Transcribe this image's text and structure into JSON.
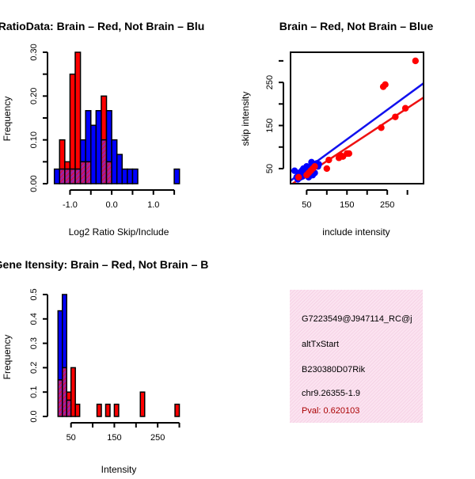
{
  "colors": {
    "red": "#ff0000",
    "blue": "#0000ff",
    "purple": "#a020a0",
    "red_line": "#ee1111",
    "blue_line": "#1111ee",
    "info_bg": "#f9dcec",
    "pval": "#aa0000"
  },
  "chart_data": [
    {
      "type": "bar",
      "title": "RatioData: Brain – Red, Not Brain – Blu",
      "xlabel": "Log2 Ratio Skip/Include",
      "ylabel": "Frequency",
      "xlim": [
        -1.35,
        1.65
      ],
      "ylim": [
        0,
        0.3
      ],
      "xticks": [
        -1.0,
        -0.5,
        0.0,
        0.5,
        1.0,
        1.5
      ],
      "xticklabels": [
        "-1.0",
        "0.0",
        "1.0"
      ],
      "xticklabel_values": [
        -1.0,
        0.0,
        1.0
      ],
      "yticks": [
        0.0,
        0.1,
        0.2,
        0.3
      ],
      "yticklabels": [
        "0.00",
        "0.10",
        "0.20",
        "0.30"
      ],
      "ytick_minor": [
        0.05,
        0.15,
        0.25
      ],
      "bin_width": 0.125,
      "bin_starts": [
        -1.375,
        -1.25,
        -1.125,
        -1.0,
        -0.875,
        -0.75,
        -0.625,
        -0.5,
        -0.375,
        -0.25,
        -0.125,
        0.0,
        0.125,
        0.25,
        0.375,
        0.5,
        0.625,
        0.75,
        0.875,
        1.0,
        1.125,
        1.25,
        1.375,
        1.5
      ],
      "series": [
        {
          "name": "Not Brain",
          "color": "blue",
          "values": [
            0.0333,
            0.0333,
            0.0333,
            0.0333,
            0.0333,
            0.1,
            0.1667,
            0.1333,
            0.1667,
            0.1,
            0.1667,
            0.1,
            0.0667,
            0.0333,
            0.0333,
            0.0333,
            0,
            0,
            0,
            0,
            0,
            0,
            0,
            0.0333
          ]
        },
        {
          "name": "Brain",
          "color": "red",
          "values": [
            0,
            0.1,
            0.05,
            0.25,
            0.3,
            0.05,
            0.05,
            0,
            0,
            0.2,
            0.05,
            0,
            0,
            0,
            0,
            0,
            0,
            0,
            0,
            0,
            0,
            0,
            0,
            0
          ]
        }
      ]
    },
    {
      "type": "scatter",
      "title": "Brain – Red, Not Brain – Blue",
      "xlabel": "include intensity",
      "ylabel": "skip intensity",
      "xlim": [
        10,
        340
      ],
      "ylim": [
        15,
        320
      ],
      "xticks": [
        50,
        150,
        250
      ],
      "xticklabels": [
        "50",
        "150",
        "250"
      ],
      "xtick_minor": [
        100,
        200,
        300
      ],
      "yticks": [
        50,
        150,
        250
      ],
      "yticklabels": [
        "50",
        "150",
        "250"
      ],
      "ytick_minor": [
        100,
        200,
        300
      ],
      "series": [
        {
          "name": "Not Brain",
          "color": "blue",
          "x": [
            20,
            25,
            28,
            30,
            33,
            35,
            38,
            40,
            42,
            45,
            48,
            50,
            52,
            55,
            58,
            60,
            62,
            65,
            68,
            70,
            72,
            75,
            78,
            80,
            55,
            65
          ],
          "y": [
            45,
            30,
            25,
            40,
            35,
            30,
            45,
            32,
            50,
            38,
            42,
            55,
            35,
            48,
            40,
            52,
            65,
            45,
            60,
            40,
            58,
            62,
            55,
            60,
            30,
            35
          ],
          "fit": {
            "x": [
              10,
              340
            ],
            "y": [
              22,
              248
            ]
          }
        },
        {
          "name": "Brain",
          "color": "red",
          "x": [
            30,
            50,
            55,
            60,
            65,
            70,
            100,
            105,
            130,
            135,
            140,
            150,
            155,
            235,
            240,
            245,
            270,
            295,
            320
          ],
          "y": [
            30,
            35,
            40,
            45,
            50,
            55,
            50,
            70,
            75,
            80,
            78,
            85,
            85,
            145,
            240,
            245,
            170,
            190,
            300
          ],
          "fit": {
            "x": [
              10,
              340
            ],
            "y": [
              12,
              215
            ]
          }
        }
      ]
    },
    {
      "type": "bar",
      "title": "Gene Itensity: Brain – Red, Not Brain – B",
      "xlabel": "Intensity",
      "ylabel": "Frequency",
      "xlim": [
        14,
        310
      ],
      "ylim": [
        0,
        0.5
      ],
      "xticks": [
        50,
        100,
        150,
        200,
        250,
        300
      ],
      "xticklabels": [
        "50",
        "150",
        "250"
      ],
      "xticklabel_values": [
        50,
        150,
        250
      ],
      "yticks": [
        0.0,
        0.1,
        0.2,
        0.3,
        0.4,
        0.5
      ],
      "yticklabels": [
        "0.0",
        "0.1",
        "0.2",
        "0.3",
        "0.4",
        "0.5"
      ],
      "bin_width": 10,
      "bin_starts": [
        20,
        30,
        40,
        50,
        60,
        70,
        80,
        90,
        100,
        110,
        120,
        130,
        140,
        150,
        160,
        170,
        180,
        190,
        200,
        210,
        220,
        230,
        240,
        250,
        260,
        270,
        280,
        290
      ],
      "series": [
        {
          "name": "Not Brain",
          "color": "blue",
          "values": [
            0.4333,
            0.5,
            0.0667,
            0,
            0,
            0,
            0,
            0,
            0,
            0,
            0,
            0,
            0,
            0,
            0,
            0,
            0,
            0,
            0,
            0,
            0,
            0,
            0,
            0,
            0,
            0,
            0,
            0
          ]
        },
        {
          "name": "Brain",
          "color": "red",
          "values": [
            0.15,
            0.2,
            0.1,
            0.2,
            0.05,
            0,
            0,
            0,
            0,
            0.05,
            0,
            0.05,
            0,
            0.05,
            0,
            0,
            0,
            0,
            0,
            0.1,
            0,
            0,
            0,
            0,
            0,
            0,
            0,
            0.05
          ]
        }
      ]
    }
  ],
  "info": {
    "lines": [
      "G7223549@J947114_RC@j",
      "altTxStart",
      "B230380D07Rik",
      "chr9.26355-1.9"
    ],
    "pval": "Pval: 0.620103"
  }
}
